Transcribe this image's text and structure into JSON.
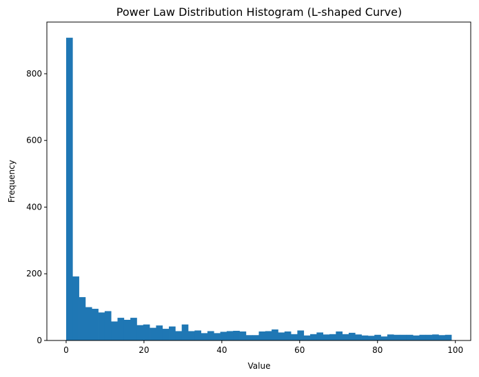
{
  "chart_data": {
    "type": "bar",
    "title": "Power Law Distribution Histogram (L-shaped Curve)",
    "xlabel": "Value",
    "ylabel": "Frequency",
    "xlim": [
      -4.95,
      103.95
    ],
    "ylim": [
      0,
      955
    ],
    "xticks": [
      0,
      20,
      40,
      60,
      80,
      100
    ],
    "yticks": [
      0,
      200,
      400,
      600,
      800
    ],
    "bar_color": "#1f77b4",
    "bin_edges_start": 0,
    "bin_width": 1.65,
    "values": [
      908,
      192,
      130,
      100,
      95,
      84,
      88,
      57,
      68,
      62,
      68,
      46,
      48,
      38,
      45,
      35,
      42,
      28,
      48,
      28,
      30,
      22,
      28,
      22,
      26,
      28,
      29,
      27,
      16,
      16,
      27,
      28,
      33,
      24,
      27,
      19,
      30,
      15,
      19,
      24,
      18,
      19,
      27,
      19,
      23,
      18,
      15,
      14,
      17,
      12,
      18,
      17,
      17,
      17,
      15,
      17,
      17,
      18,
      16,
      17
    ]
  }
}
